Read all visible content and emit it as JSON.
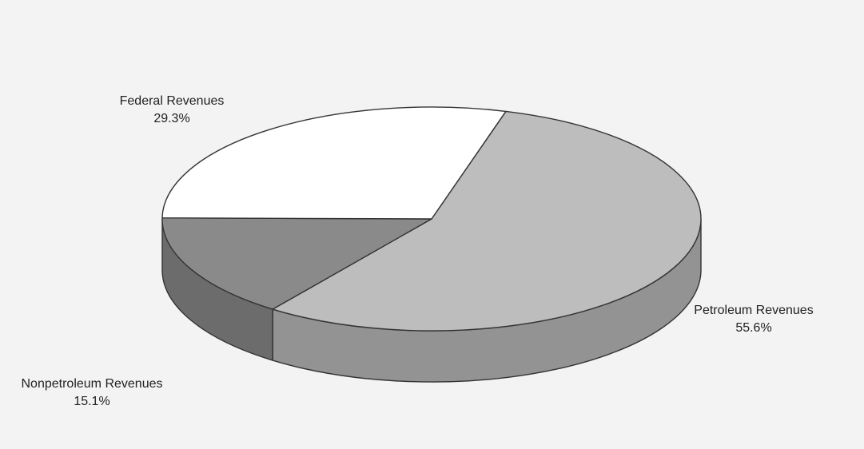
{
  "chart_data": {
    "type": "pie",
    "title": "",
    "slices": [
      {
        "label": "Petroleum Revenues",
        "value": 55.6,
        "value_label": "55.6%",
        "color": "#bdbdbd"
      },
      {
        "label": "Nonpetroleum Revenues",
        "value": 15.1,
        "value_label": "15.1%",
        "color": "#8a8a8a"
      },
      {
        "label": "Federal Revenues",
        "value": 29.3,
        "value_label": "29.3%",
        "color": "#ffffff"
      }
    ],
    "style": "3d-perspective",
    "legend": "none"
  }
}
